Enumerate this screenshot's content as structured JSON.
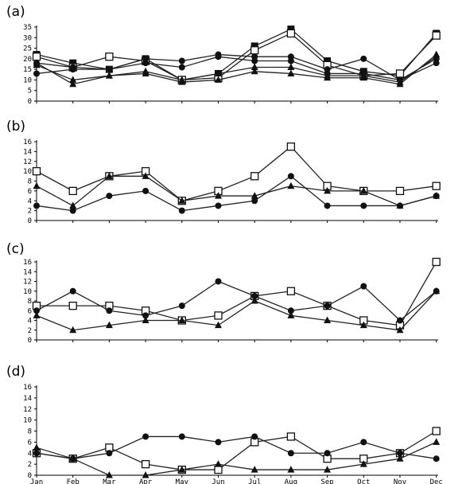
{
  "months": [
    "Jan",
    "Feb",
    "Mar",
    "Apr",
    "May",
    "Jun",
    "Jul",
    "Aug",
    "Sep",
    "Oct",
    "Nov",
    "Dec"
  ],
  "chart_data": [
    {
      "type": "line",
      "title": "(a)",
      "ylim": [
        0,
        35
      ],
      "yticks": [
        "0",
        "5",
        "10",
        "15",
        "20",
        "25",
        "30",
        "35"
      ],
      "series": [
        {
          "marker": "filled-square",
          "values": [
            22,
            18,
            15,
            20,
            10,
            13,
            26,
            34,
            19,
            14,
            12,
            32
          ]
        },
        {
          "marker": "open-square",
          "values": [
            21,
            16,
            21,
            19,
            10,
            11,
            24,
            32,
            17,
            12,
            13,
            31
          ]
        },
        {
          "marker": "filled-circle",
          "values": [
            13,
            15,
            15,
            20,
            19,
            22,
            21,
            21,
            15,
            20,
            10,
            18
          ]
        },
        {
          "marker": "filled-circle",
          "values": [
            18,
            16,
            15,
            18,
            16,
            21,
            19,
            19,
            13,
            13,
            10,
            20
          ]
        },
        {
          "marker": "filled-triangle",
          "values": [
            18,
            8,
            12,
            13,
            9,
            10,
            14,
            13,
            11,
            11,
            8,
            22
          ]
        },
        {
          "marker": "filled-triangle",
          "values": [
            17,
            10,
            12,
            14,
            10,
            13,
            16,
            16,
            12,
            12,
            9,
            21
          ]
        }
      ]
    },
    {
      "type": "line",
      "title": "(b)",
      "ylim": [
        0,
        16
      ],
      "yticks": [
        "0",
        "2",
        "4",
        "6",
        "8",
        "10",
        "12",
        "14",
        "16"
      ],
      "series": [
        {
          "marker": "open-square",
          "values": [
            10,
            6,
            9,
            10,
            4,
            6,
            9,
            15,
            7,
            6,
            6,
            7
          ]
        },
        {
          "marker": "filled-triangle",
          "values": [
            7,
            3,
            9,
            9,
            4,
            5,
            5,
            7,
            6,
            6,
            3,
            5
          ]
        },
        {
          "marker": "filled-circle",
          "values": [
            3,
            2,
            5,
            6,
            2,
            3,
            4,
            9,
            3,
            3,
            3,
            5
          ]
        }
      ]
    },
    {
      "type": "line",
      "title": "(c)",
      "ylim": [
        0,
        16
      ],
      "yticks": [
        "0",
        "2",
        "4",
        "6",
        "8",
        "10",
        "12",
        "14",
        "16"
      ],
      "series": [
        {
          "marker": "open-square",
          "values": [
            7,
            7,
            7,
            6,
            4,
            5,
            9,
            10,
            7,
            4,
            3,
            16
          ]
        },
        {
          "marker": "filled-circle",
          "values": [
            6,
            10,
            6,
            5,
            7,
            12,
            9,
            6,
            7,
            11,
            4,
            10
          ]
        },
        {
          "marker": "filled-triangle",
          "values": [
            5,
            2,
            3,
            4,
            4,
            3,
            8,
            5,
            4,
            3,
            2,
            10
          ]
        }
      ]
    },
    {
      "type": "line",
      "title": "(d)",
      "ylim": [
        0,
        16
      ],
      "yticks": [
        "0",
        "2",
        "4",
        "6",
        "8",
        "10",
        "12",
        "14",
        "16"
      ],
      "series": [
        {
          "marker": "open-square",
          "values": [
            4,
            3,
            5,
            2,
            1,
            1,
            6,
            7,
            3,
            3,
            4,
            8
          ]
        },
        {
          "marker": "filled-circle",
          "values": [
            4,
            3,
            4,
            7,
            7,
            6,
            7,
            4,
            4,
            6,
            4,
            3
          ]
        },
        {
          "marker": "filled-triangle",
          "values": [
            5,
            3,
            0,
            0,
            1,
            2,
            1,
            1,
            1,
            2,
            3,
            6
          ]
        }
      ]
    }
  ]
}
